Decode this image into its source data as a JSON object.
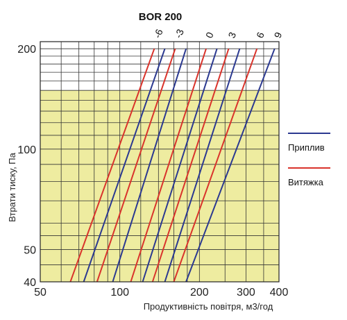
{
  "chart_data": {
    "type": "line",
    "title": "BOR 200",
    "xlabel": "Продуктивність повітря, м3/год",
    "ylabel": "Втрати тиску, Па",
    "xscale": "log",
    "yscale": "log",
    "xlim": [
      50,
      400
    ],
    "ylim": [
      40,
      210
    ],
    "x_ticks": [
      50,
      100,
      200,
      300,
      400
    ],
    "y_ticks": [
      40,
      50,
      100,
      200
    ],
    "grid": true,
    "shaded_region": {
      "color": "#eeeca0",
      "y_below": 150
    },
    "legend": {
      "placement": "right",
      "entries": [
        {
          "name": "Приплив",
          "color": "#2b3990"
        },
        {
          "name": "Витяжка",
          "color": "#d9332b"
        }
      ]
    },
    "position_labels": [
      "-6",
      "-3",
      "0",
      "3",
      "6",
      "9"
    ],
    "series": [
      {
        "name": "Витяжка",
        "position": "-6",
        "x": [
          65,
          135
        ],
        "y": [
          40,
          200
        ]
      },
      {
        "name": "Приплив",
        "position": "-6",
        "x": [
          73,
          148
        ],
        "y": [
          40,
          200
        ]
      },
      {
        "name": "Витяжка",
        "position": "-3",
        "x": [
          82,
          162
        ],
        "y": [
          40,
          200
        ]
      },
      {
        "name": "Приплив",
        "position": "-3",
        "x": [
          94,
          178
        ],
        "y": [
          40,
          200
        ]
      },
      {
        "name": "Витяжка",
        "position": "0",
        "x": [
          110,
          212
        ],
        "y": [
          40,
          200
        ]
      },
      {
        "name": "Приплив",
        "position": "0",
        "x": [
          122,
          233
        ],
        "y": [
          40,
          200
        ]
      },
      {
        "name": "Витяжка",
        "position": "3",
        "x": [
          133,
          258
        ],
        "y": [
          40,
          200
        ]
      },
      {
        "name": "Приплив",
        "position": "3",
        "x": [
          148,
          284
        ],
        "y": [
          40,
          200
        ]
      },
      {
        "name": "Витяжка",
        "position": "6",
        "x": [
          160,
          330
        ],
        "y": [
          40,
          200
        ]
      },
      {
        "name": "Приплив",
        "position": "9",
        "x": [
          178,
          385
        ],
        "y": [
          40,
          200
        ]
      }
    ]
  }
}
